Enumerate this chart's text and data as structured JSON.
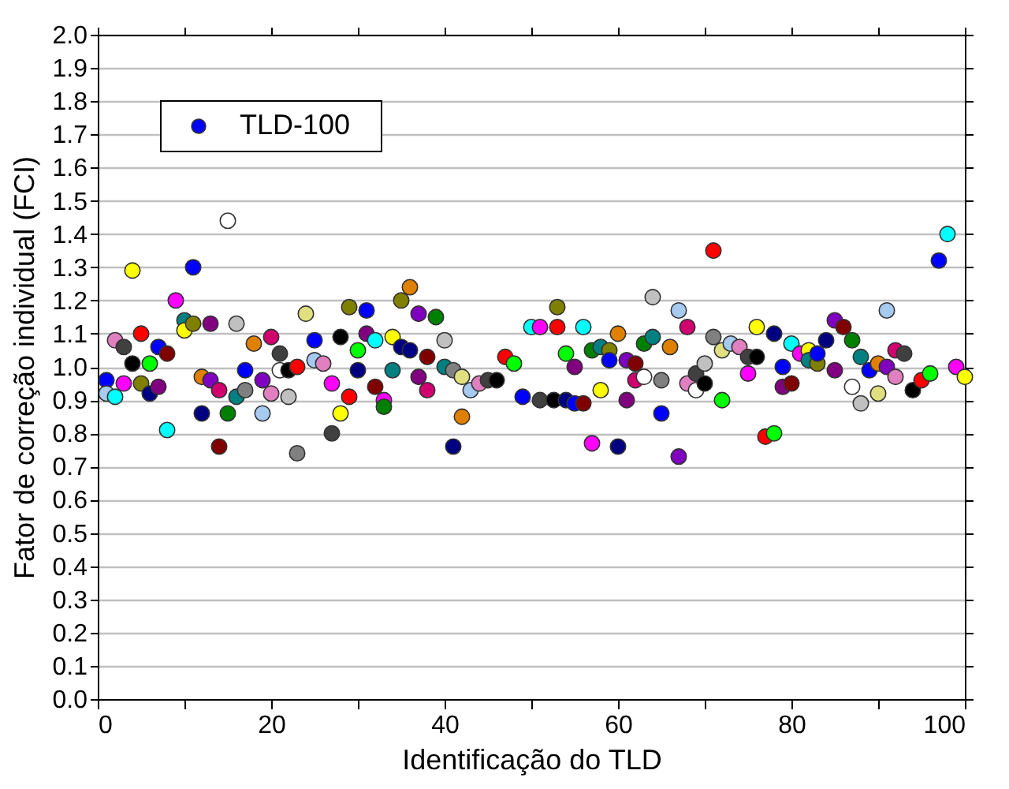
{
  "chart_data": {
    "type": "scatter",
    "xlabel": "Identificação do TLD",
    "ylabel": "Fator de correção individual (FCI)",
    "xlim": [
      0,
      100
    ],
    "ylim": [
      0,
      2.0
    ],
    "xticks": [
      0,
      {
        "value": 10,
        "label": null
      },
      20,
      {
        "value": 30,
        "label": null
      },
      40,
      {
        "value": 50,
        "label": null
      },
      60,
      {
        "value": 70,
        "label": null
      },
      80,
      {
        "value": 90,
        "label": null
      },
      100
    ],
    "yticks": [
      {
        "value": 0,
        "label": "0.0"
      },
      0.1,
      0.2,
      0.3,
      0.4,
      0.5,
      0.6,
      0.7,
      0.8,
      0.9,
      {
        "value": 1,
        "label": "1.0"
      },
      1.1,
      1.2,
      1.3,
      1.4,
      1.5,
      1.6,
      1.7,
      1.8,
      1.9,
      {
        "value": 2,
        "label": "2.0"
      }
    ],
    "grid": "y",
    "legend": "top left",
    "marker": "circle",
    "series": [
      {
        "name": "TLD-100",
        "color": "#0000ff",
        "x": [
          1,
          1,
          2,
          2,
          3,
          3,
          4,
          4,
          5,
          5,
          6,
          6,
          7,
          7,
          8,
          8,
          9,
          10,
          10,
          11,
          11,
          12,
          12,
          13,
          13,
          14,
          14,
          15,
          15,
          16,
          16,
          17,
          17,
          18,
          19,
          19,
          20,
          20,
          21,
          21,
          22,
          22,
          23,
          23,
          24,
          25,
          25,
          26,
          27,
          27,
          28,
          28,
          29,
          29,
          30,
          30,
          31,
          31,
          32,
          32,
          33,
          33,
          34,
          34,
          35,
          35,
          36,
          36,
          37,
          37,
          38,
          38,
          39,
          40,
          40,
          41,
          41,
          42,
          42,
          43,
          44,
          45,
          46,
          47,
          48,
          49,
          50,
          51,
          51,
          52.6,
          53,
          53,
          54,
          54,
          55,
          55,
          56,
          56,
          57,
          57,
          58,
          58,
          59,
          59,
          60,
          60,
          61,
          61,
          62,
          62,
          63,
          63,
          64,
          64,
          65,
          65,
          66,
          67,
          67,
          68,
          68,
          69,
          69,
          70,
          70,
          71,
          71,
          72,
          72,
          73,
          74,
          75,
          75,
          76,
          76,
          77,
          78,
          78,
          79,
          79,
          80,
          80,
          81,
          82,
          82,
          83,
          83,
          84,
          85,
          85,
          86,
          87,
          87,
          88,
          88,
          89,
          90,
          90,
          91,
          91,
          92,
          92,
          93,
          94,
          95,
          96,
          97,
          98,
          99,
          100
        ],
        "values": [
          0.96,
          0.92,
          1.08,
          0.91,
          1.06,
          0.95,
          1.29,
          1.01,
          1.1,
          0.95,
          1.01,
          0.92,
          1.06,
          0.94,
          1.04,
          0.81,
          1.2,
          1.14,
          1.11,
          1.3,
          1.13,
          0.97,
          0.86,
          1.13,
          0.96,
          0.93,
          0.76,
          1.44,
          0.86,
          1.13,
          0.91,
          0.99,
          0.93,
          1.07,
          0.96,
          0.86,
          1.09,
          0.92,
          1.04,
          0.99,
          0.99,
          0.91,
          1.0,
          0.74,
          1.16,
          1.08,
          1.02,
          1.01,
          0.95,
          0.8,
          1.09,
          0.86,
          1.18,
          0.91,
          1.05,
          0.99,
          1.17,
          1.1,
          1.08,
          0.94,
          0.9,
          0.88,
          1.09,
          0.99,
          1.2,
          1.06,
          1.24,
          1.05,
          1.16,
          0.97,
          1.03,
          0.93,
          1.15,
          1.08,
          1.0,
          0.99,
          0.76,
          0.97,
          0.85,
          0.93,
          0.95,
          0.96,
          0.96,
          1.03,
          1.01,
          0.91,
          1.12,
          1.12,
          0.9,
          0.9,
          1.18,
          1.12,
          1.04,
          0.9,
          1.0,
          0.89,
          1.12,
          0.89,
          1.05,
          0.77,
          1.06,
          0.93,
          1.05,
          1.02,
          1.1,
          0.76,
          1.02,
          0.9,
          1.01,
          0.96,
          1.07,
          0.97,
          1.21,
          1.09,
          0.96,
          0.86,
          1.06,
          1.17,
          0.73,
          1.12,
          0.95,
          0.98,
          0.93,
          1.01,
          0.95,
          1.35,
          1.09,
          1.05,
          0.9,
          1.07,
          1.06,
          1.03,
          0.98,
          1.03,
          1.12,
          0.79,
          1.1,
          0.8,
          1.0,
          0.94,
          1.07,
          0.95,
          1.04,
          1.05,
          1.02,
          1.01,
          1.04,
          1.08,
          1.14,
          0.99,
          1.12,
          1.08,
          0.94,
          1.03,
          0.89,
          0.99,
          1.01,
          0.92,
          1.17,
          1.0,
          1.05,
          0.97,
          1.04,
          0.93,
          0.96,
          0.98,
          1.32,
          1.4,
          1.0,
          0.97
        ],
        "colors": [
          "#0000ff",
          "#a6caf0",
          "#e080c0",
          "#00ffff",
          "#404040",
          "#ff00ff",
          "#ffff00",
          "#000000",
          "#ff0000",
          "#808000",
          "#00ff00",
          "#000080",
          "#0000ff",
          "#800080",
          "#800000",
          "#00ffff",
          "#ff00ff",
          "#008080",
          "#ffff00",
          "#0000ff",
          "#808000",
          "#e08000",
          "#000080",
          "#800080",
          "#8000c0",
          "#d0006f",
          "#800000",
          "#ffffff",
          "#008000",
          "#c0c0c0",
          "#008080",
          "#0000ff",
          "#808080",
          "#e08000",
          "#8000c0",
          "#a6caf0",
          "#d0006f",
          "#e080c0",
          "#404040",
          "#ffffff",
          "#000000",
          "#c0c0c0",
          "#ff0000",
          "#808080",
          "#e0e080",
          "#0000ff",
          "#a6caf0",
          "#e080c0",
          "#ff00ff",
          "#404040",
          "#000000",
          "#ffff00",
          "#808000",
          "#ff0000",
          "#00ff00",
          "#000080",
          "#0000ff",
          "#800080",
          "#00ffff",
          "#800000",
          "#ff00ff",
          "#008000",
          "#ffff00",
          "#008080",
          "#808000",
          "#000080",
          "#e08000",
          "#000080",
          "#8000c0",
          "#800080",
          "#800000",
          "#d0006f",
          "#008000",
          "#c0c0c0",
          "#008080",
          "#808080",
          "#000080",
          "#e0e080",
          "#e08000",
          "#a6caf0",
          "#e080c0",
          "#404040",
          "#000000",
          "#ff0000",
          "#00ff00",
          "#0000ff",
          "#00ffff",
          "#ff00ff",
          "#404040",
          "#000000",
          "#808000",
          "#ff0000",
          "#00ff00",
          "#000080",
          "#800080",
          "#0000ff",
          "#00ffff",
          "#800000",
          "#008000",
          "#ff00ff",
          "#008080",
          "#ffff00",
          "#808000",
          "#0000ff",
          "#e08000",
          "#000080",
          "#8000c0",
          "#800080",
          "#800000",
          "#d0006f",
          "#008000",
          "#ffffff",
          "#c0c0c0",
          "#008080",
          "#808080",
          "#0000ff",
          "#e08000",
          "#a6caf0",
          "#8000c0",
          "#d0006f",
          "#e080c0",
          "#404040",
          "#ffffff",
          "#c0c0c0",
          "#000000",
          "#ff0000",
          "#808080",
          "#e0e080",
          "#00ff00",
          "#a6caf0",
          "#e080c0",
          "#404040",
          "#ff00ff",
          "#000000",
          "#ffff00",
          "#ff0000",
          "#000080",
          "#00ff00",
          "#0000ff",
          "#800080",
          "#00ffff",
          "#800000",
          "#ff00ff",
          "#ffff00",
          "#008080",
          "#808000",
          "#0000ff",
          "#000080",
          "#8000c0",
          "#800080",
          "#800000",
          "#008000",
          "#ffffff",
          "#008080",
          "#c0c0c0",
          "#0000ff",
          "#e08000",
          "#e0e080",
          "#a6caf0",
          "#8000c0",
          "#d0006f",
          "#e080c0",
          "#404040",
          "#000000",
          "#ff0000",
          "#00ff00",
          "#0000ff",
          "#00ffff",
          "#ff00ff",
          "#ffff00"
        ]
      }
    ]
  }
}
